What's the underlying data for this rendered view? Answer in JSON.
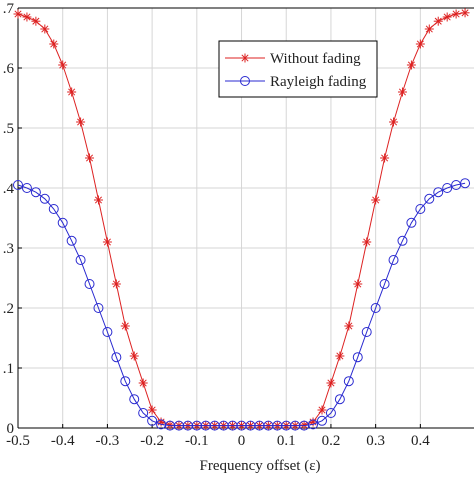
{
  "colors": {
    "without_fading": "#dd2222",
    "rayleigh_fading": "#2a2ad0",
    "grid": "#d6d6d6",
    "axis": "#000000"
  },
  "chart_data": {
    "type": "line",
    "title": "",
    "xlabel": "Frequency offset (ε)",
    "ylabel": "",
    "xlim": [
      -0.5,
      0.5
    ],
    "ylim": [
      0,
      0.7
    ],
    "grid": true,
    "legend_position": "top-right",
    "x_tick_labels": [
      "-0.5",
      "-0.4",
      "-0.3",
      "-0.2",
      "-0.1",
      "0",
      "0.1",
      "0.2",
      "0.3",
      "0.4"
    ],
    "x_tick_values": [
      -0.5,
      -0.4,
      -0.3,
      -0.2,
      -0.1,
      0,
      0.1,
      0.2,
      0.3,
      0.4
    ],
    "y_tick_labels": [
      "0",
      ".1",
      ".2",
      ".3",
      ".4",
      ".5",
      ".6",
      ".7"
    ],
    "y_tick_values": [
      0,
      0.1,
      0.2,
      0.3,
      0.4,
      0.5,
      0.6,
      0.7
    ],
    "series": [
      {
        "name": "Without fading",
        "marker": "star",
        "x": [
          -0.5,
          -0.48,
          -0.46,
          -0.44,
          -0.42,
          -0.4,
          -0.38,
          -0.36,
          -0.34,
          -0.32,
          -0.3,
          -0.28,
          -0.26,
          -0.24,
          -0.22,
          -0.2,
          -0.18,
          -0.16,
          -0.14,
          -0.12,
          -0.1,
          -0.08,
          -0.06,
          -0.04,
          -0.02,
          0,
          0.02,
          0.04,
          0.06,
          0.08,
          0.1,
          0.12,
          0.14,
          0.16,
          0.18,
          0.2,
          0.22,
          0.24,
          0.26,
          0.28,
          0.3,
          0.32,
          0.34,
          0.36,
          0.38,
          0.4,
          0.42,
          0.44,
          0.46,
          0.48,
          0.5
        ],
        "y": [
          0.69,
          0.685,
          0.678,
          0.665,
          0.64,
          0.605,
          0.56,
          0.51,
          0.45,
          0.38,
          0.31,
          0.24,
          0.17,
          0.12,
          0.075,
          0.03,
          0.01,
          0.005,
          0.004,
          0.004,
          0.004,
          0.004,
          0.004,
          0.004,
          0.004,
          0.004,
          0.004,
          0.004,
          0.004,
          0.004,
          0.004,
          0.004,
          0.005,
          0.01,
          0.03,
          0.075,
          0.12,
          0.17,
          0.24,
          0.31,
          0.38,
          0.45,
          0.51,
          0.56,
          0.605,
          0.64,
          0.665,
          0.678,
          0.685,
          0.69,
          0.692
        ]
      },
      {
        "name": "Rayleigh fading",
        "marker": "circle",
        "x": [
          -0.5,
          -0.48,
          -0.46,
          -0.44,
          -0.42,
          -0.4,
          -0.38,
          -0.36,
          -0.34,
          -0.32,
          -0.3,
          -0.28,
          -0.26,
          -0.24,
          -0.22,
          -0.2,
          -0.18,
          -0.16,
          -0.14,
          -0.12,
          -0.1,
          -0.08,
          -0.06,
          -0.04,
          -0.02,
          0,
          0.02,
          0.04,
          0.06,
          0.08,
          0.1,
          0.12,
          0.14,
          0.16,
          0.18,
          0.2,
          0.22,
          0.24,
          0.26,
          0.28,
          0.3,
          0.32,
          0.34,
          0.36,
          0.38,
          0.4,
          0.42,
          0.44,
          0.46,
          0.48,
          0.5
        ],
        "y": [
          0.405,
          0.4,
          0.393,
          0.382,
          0.365,
          0.342,
          0.312,
          0.28,
          0.24,
          0.2,
          0.16,
          0.118,
          0.078,
          0.048,
          0.025,
          0.012,
          0.006,
          0.004,
          0.004,
          0.004,
          0.004,
          0.004,
          0.004,
          0.004,
          0.004,
          0.004,
          0.004,
          0.004,
          0.004,
          0.004,
          0.004,
          0.004,
          0.004,
          0.006,
          0.012,
          0.025,
          0.048,
          0.078,
          0.118,
          0.16,
          0.2,
          0.24,
          0.28,
          0.312,
          0.342,
          0.365,
          0.382,
          0.393,
          0.4,
          0.405,
          0.408
        ]
      }
    ]
  }
}
